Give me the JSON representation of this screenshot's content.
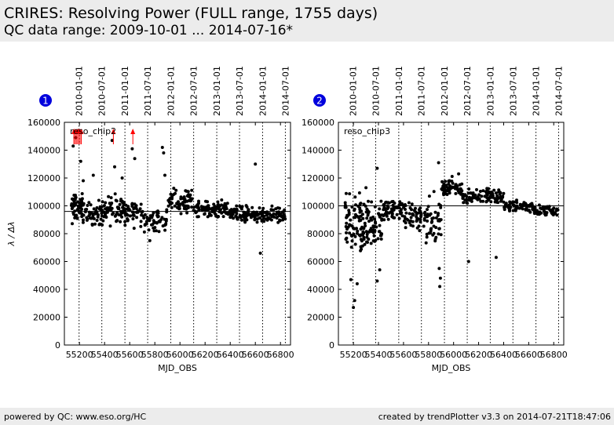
{
  "header": {
    "title": "CRIRES: Resolving Power (FULL range, 1755 days)",
    "subtitle": "QC data range: 2009-10-01 ... 2014-07-16*"
  },
  "footer": {
    "left": "powered by QC: www.eso.org/HC",
    "right": "created by trendPlotter v3.3 on 2014-07-21T18:47:06"
  },
  "colors": {
    "marker_badge": "#0000dd",
    "outlier_arrow": "#ff0000",
    "point": "#000000"
  },
  "chart_data": [
    {
      "type": "scatter",
      "panel_number": "1",
      "series_label": "reso_chip2",
      "xlabel": "MJD_OBS",
      "ylabel": "λ / Δλ",
      "xlim": [
        55080,
        56880
      ],
      "ylim": [
        0,
        160000
      ],
      "x_ticks": [
        55200,
        55400,
        55600,
        55800,
        56000,
        56200,
        56400,
        56600,
        56800
      ],
      "y_ticks": [
        0,
        20000,
        40000,
        60000,
        80000,
        100000,
        120000,
        140000,
        160000
      ],
      "reference_line": 96000,
      "date_markers": [
        {
          "label": "2010-01-01",
          "x": 55197
        },
        {
          "label": "2010-07-01",
          "x": 55378
        },
        {
          "label": "2011-01-01",
          "x": 55562
        },
        {
          "label": "2011-07-01",
          "x": 55743
        },
        {
          "label": "2012-01-01",
          "x": 55927
        },
        {
          "label": "2012-07-01",
          "x": 56109
        },
        {
          "label": "2013-01-01",
          "x": 56293
        },
        {
          "label": "2013-07-01",
          "x": 56474
        },
        {
          "label": "2014-01-01",
          "x": 56658
        },
        {
          "label": "2014-07-01",
          "x": 56839
        }
      ],
      "outlier_arrows_x": [
        55155,
        55165,
        55175,
        55185,
        55195,
        55205,
        55215,
        55470,
        55625
      ],
      "segments": [
        {
          "x0": 55130,
          "x1": 55260,
          "base": 98000,
          "spread": 9000,
          "n": 70
        },
        {
          "x0": 55260,
          "x1": 55410,
          "base": 95000,
          "spread": 8000,
          "n": 55
        },
        {
          "x0": 55410,
          "x1": 55560,
          "base": 97000,
          "spread": 9000,
          "n": 55
        },
        {
          "x0": 55560,
          "x1": 55700,
          "base": 96000,
          "spread": 9000,
          "n": 45
        },
        {
          "x0": 55700,
          "x1": 55900,
          "base": 89000,
          "spread": 8000,
          "n": 55
        },
        {
          "x0": 55900,
          "x1": 56100,
          "base": 104000,
          "spread": 7000,
          "n": 70
        },
        {
          "x0": 56100,
          "x1": 56380,
          "base": 98000,
          "spread": 5000,
          "n": 90
        },
        {
          "x0": 56380,
          "x1": 56640,
          "base": 94000,
          "spread": 5000,
          "n": 85
        },
        {
          "x0": 56640,
          "x1": 56840,
          "base": 93000,
          "spread": 5000,
          "n": 65
        }
      ],
      "extra_points": [
        [
          55150,
          143000
        ],
        [
          55170,
          149000
        ],
        [
          55190,
          154000
        ],
        [
          55210,
          132000
        ],
        [
          55230,
          118000
        ],
        [
          55460,
          147000
        ],
        [
          55480,
          128000
        ],
        [
          55620,
          141000
        ],
        [
          55640,
          134000
        ],
        [
          55860,
          142000
        ],
        [
          55870,
          138000
        ],
        [
          55880,
          122000
        ],
        [
          56600,
          130000
        ],
        [
          56640,
          66000
        ],
        [
          55760,
          75000
        ],
        [
          55540,
          120000
        ],
        [
          55310,
          122000
        ]
      ]
    },
    {
      "type": "scatter",
      "panel_number": "2",
      "series_label": "reso_chip3",
      "xlabel": "MJD_OBS",
      "ylabel": "",
      "xlim": [
        55080,
        56880
      ],
      "ylim": [
        0,
        160000
      ],
      "x_ticks": [
        55200,
        55400,
        55600,
        55800,
        56000,
        56200,
        56400,
        56600,
        56800
      ],
      "y_ticks": [
        0,
        20000,
        40000,
        60000,
        80000,
        100000,
        120000,
        140000,
        160000
      ],
      "reference_line": 100000,
      "date_markers": [
        {
          "label": "2010-01-01",
          "x": 55197
        },
        {
          "label": "2010-07-01",
          "x": 55378
        },
        {
          "label": "2011-01-01",
          "x": 55562
        },
        {
          "label": "2011-07-01",
          "x": 55743
        },
        {
          "label": "2012-01-01",
          "x": 55927
        },
        {
          "label": "2012-07-01",
          "x": 56109
        },
        {
          "label": "2013-01-01",
          "x": 56293
        },
        {
          "label": "2013-07-01",
          "x": 56474
        },
        {
          "label": "2014-01-01",
          "x": 56658
        },
        {
          "label": "2014-07-01",
          "x": 56839
        }
      ],
      "outlier_arrows_x": [],
      "segments": [
        {
          "x0": 55130,
          "x1": 55280,
          "base": 85000,
          "spread": 20000,
          "n": 80
        },
        {
          "x0": 55280,
          "x1": 55430,
          "base": 85000,
          "spread": 17000,
          "n": 70
        },
        {
          "x0": 55430,
          "x1": 55600,
          "base": 97000,
          "spread": 7000,
          "n": 60
        },
        {
          "x0": 55600,
          "x1": 55780,
          "base": 92000,
          "spread": 9000,
          "n": 55
        },
        {
          "x0": 55780,
          "x1": 55900,
          "base": 88000,
          "spread": 16000,
          "n": 45
        },
        {
          "x0": 55900,
          "x1": 56070,
          "base": 113000,
          "spread": 6000,
          "n": 60
        },
        {
          "x0": 56070,
          "x1": 56400,
          "base": 107000,
          "spread": 4500,
          "n": 100
        },
        {
          "x0": 56400,
          "x1": 56640,
          "base": 100000,
          "spread": 4000,
          "n": 70
        },
        {
          "x0": 56640,
          "x1": 56840,
          "base": 96000,
          "spread": 4000,
          "n": 55
        }
      ],
      "extra_points": [
        [
          55200,
          27000
        ],
        [
          55210,
          32000
        ],
        [
          55230,
          44000
        ],
        [
          55180,
          47000
        ],
        [
          55390,
          46000
        ],
        [
          55410,
          54000
        ],
        [
          55390,
          127000
        ],
        [
          55890,
          42000
        ],
        [
          55895,
          48000
        ],
        [
          55885,
          55000
        ],
        [
          55880,
          131000
        ],
        [
          56120,
          60000
        ],
        [
          56340,
          63000
        ],
        [
          55300,
          113000
        ],
        [
          56040,
          123000
        ]
      ]
    }
  ]
}
